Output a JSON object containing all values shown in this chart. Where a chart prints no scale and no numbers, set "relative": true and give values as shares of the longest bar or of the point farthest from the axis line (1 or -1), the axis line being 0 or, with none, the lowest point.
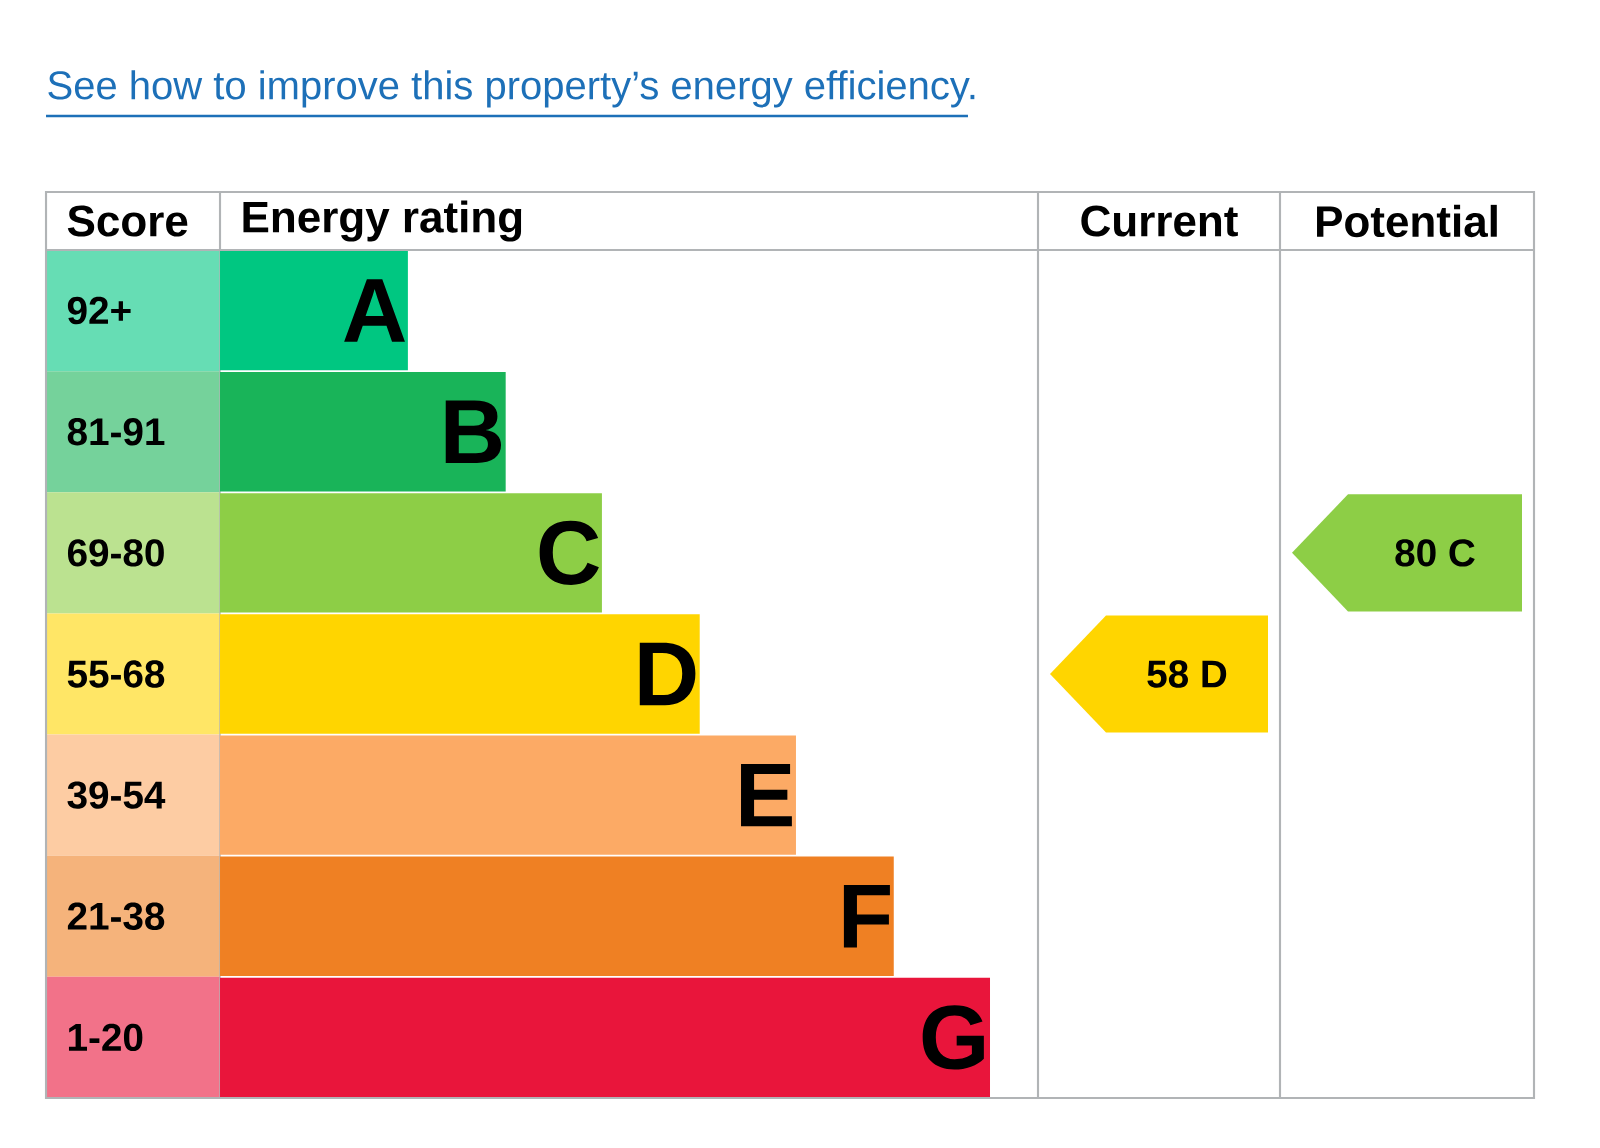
{
  "chart_data": {
    "type": "bar",
    "orientation": "horizontal",
    "relative": true,
    "title": "See how to improve this property’s energy efficiency.",
    "categories": [
      "A",
      "B",
      "C",
      "D",
      "E",
      "F",
      "G"
    ],
    "values": [
      0.244,
      0.371,
      0.496,
      0.623,
      0.748,
      0.875,
      1
    ],
    "colors": [
      "#00c781",
      "#19b459",
      "#8dce46",
      "#ffd500",
      "#fcaa65",
      "#ef8023",
      "#e9153b"
    ],
    "annotations": [
      "Score",
      "Energy rating",
      "Current",
      "Potential",
      "92+",
      "81-91",
      "69-80",
      "55-68",
      "39-54",
      "21-38",
      "1-20",
      "58 D",
      "80 C"
    ]
  }
}
